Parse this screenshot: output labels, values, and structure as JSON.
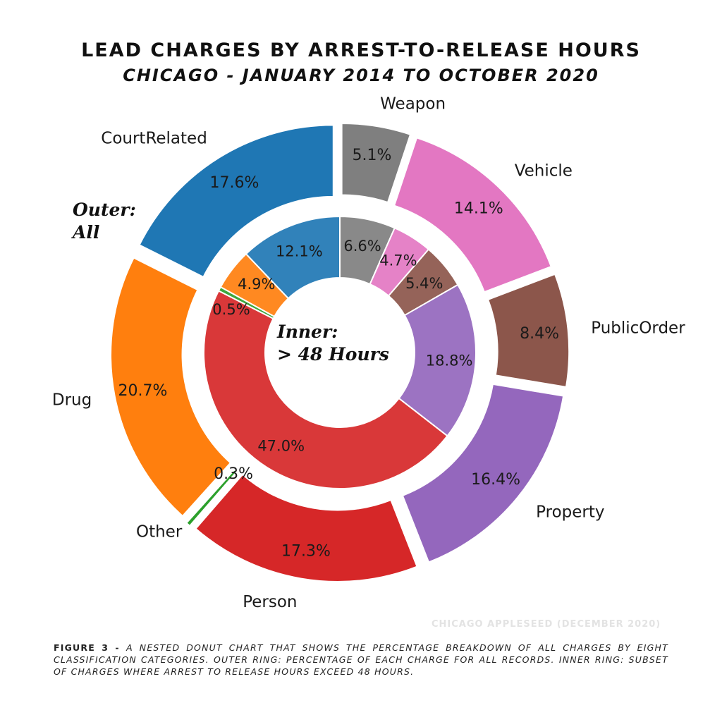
{
  "title": "LEAD CHARGES BY ARREST-TO-RELEASE HOURS",
  "subtitle": "CHICAGO - JANUARY 2014 TO OCTOBER 2020",
  "credit": "CHICAGO APPLESEED (DECEMBER 2020)",
  "caption": {
    "label": "FIGURE 3 - ",
    "text": "A NESTED DONUT CHART THAT SHOWS THE PERCENTAGE BREAKDOWN OF ALL CHARGES BY EIGHT CLASSIFICATION CATEGORIES. OUTER RING: PERCENTAGE OF EACH CHARGE FOR ALL RECORDS. INNER RING: SUBSET OF CHARGES WHERE ARREST TO RELEASE HOURS EXCEED 48 HOURS."
  },
  "chart_data": {
    "type": "pie",
    "subtype": "nested-donut",
    "outer_ring_label": [
      "Outer:",
      "All"
    ],
    "inner_ring_label": [
      "Inner:",
      "> 48 Hours"
    ],
    "categories": [
      "Weapon",
      "Vehicle",
      "PublicOrder",
      "Property",
      "Person",
      "Other",
      "Drug",
      "CourtRelated"
    ],
    "colors": [
      "#7f7f7f",
      "#e377c2",
      "#8c564b",
      "#9467bd",
      "#d62728",
      "#2ca02c",
      "#ff7f0e",
      "#1f77b4"
    ],
    "series": [
      {
        "ring": "outer",
        "values": [
          5.1,
          14.1,
          8.4,
          16.4,
          17.3,
          0.3,
          20.7,
          17.6
        ],
        "labels": [
          "5.1%",
          "14.1%",
          "8.4%",
          "16.4%",
          "17.3%",
          "0.3%",
          "20.7%",
          "17.6%"
        ]
      },
      {
        "ring": "inner",
        "values": [
          6.6,
          4.7,
          5.4,
          18.8,
          47.0,
          0.5,
          4.9,
          12.1
        ],
        "labels": [
          "6.6%",
          "4.7%",
          "5.4%",
          "18.8%",
          "47.0%",
          "0.5%",
          "4.9%",
          "12.1%"
        ]
      }
    ],
    "start_angle": "90 degrees, clockwise",
    "exploded": "outer ring slices"
  }
}
